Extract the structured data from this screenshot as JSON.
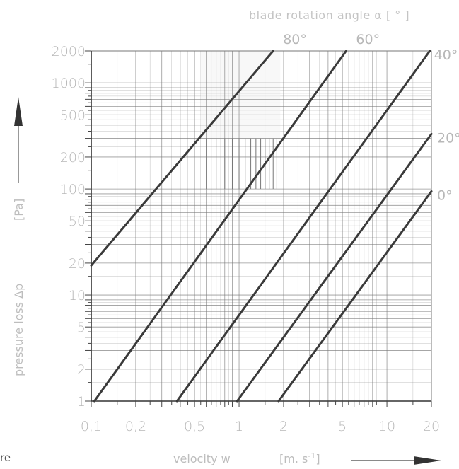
{
  "chart_data": {
    "type": "line",
    "title": "blade rotation angle   α   [ ° ]",
    "xlabel": "velocity  w",
    "xunit": "[m. s",
    "xunit_exp": "-1",
    "xunit_close": "]",
    "ylabel": "pressure loss  Δp",
    "yunit": "[Pa]",
    "xscale": "log",
    "yscale": "log",
    "xlim": [
      0.1,
      20
    ],
    "ylim": [
      1,
      2000
    ],
    "x_ticks": [
      {
        "value": 0.1,
        "label": "0,1"
      },
      {
        "value": 0.2,
        "label": "0,2"
      },
      {
        "value": 0.5,
        "label": "0,5"
      },
      {
        "value": 1,
        "label": "1"
      },
      {
        "value": 2,
        "label": "2"
      },
      {
        "value": 5,
        "label": "5"
      },
      {
        "value": 10,
        "label": "10"
      },
      {
        "value": 20,
        "label": "20"
      }
    ],
    "y_ticks": [
      {
        "value": 1,
        "label": "1"
      },
      {
        "value": 2,
        "label": "2"
      },
      {
        "value": 5,
        "label": "5"
      },
      {
        "value": 10,
        "label": "10"
      },
      {
        "value": 20,
        "label": "20"
      },
      {
        "value": 50,
        "label": "50"
      },
      {
        "value": 100,
        "label": "100"
      },
      {
        "value": 200,
        "label": "200"
      },
      {
        "value": 500,
        "label": "500"
      },
      {
        "value": 1000,
        "label": "1000"
      },
      {
        "value": 2000,
        "label": "2000"
      }
    ],
    "grid": true,
    "series": [
      {
        "name": "80°",
        "x": [
          0.1,
          1.7
        ],
        "y": [
          19,
          2000
        ]
      },
      {
        "name": "60°",
        "x": [
          0.105,
          5.3
        ],
        "y": [
          1,
          2000
        ]
      },
      {
        "name": "40°",
        "x": [
          0.38,
          19.5
        ],
        "y": [
          1,
          2000
        ]
      },
      {
        "name": "20°",
        "x": [
          0.97,
          20
        ],
        "y": [
          1,
          330
        ]
      },
      {
        "name": "0°",
        "x": [
          1.85,
          20
        ],
        "y": [
          1,
          95
        ]
      }
    ],
    "fragment": "re"
  },
  "colors": {
    "curve": "#3a3a3a",
    "grid": "#777777",
    "text": "#b8b8b8"
  }
}
